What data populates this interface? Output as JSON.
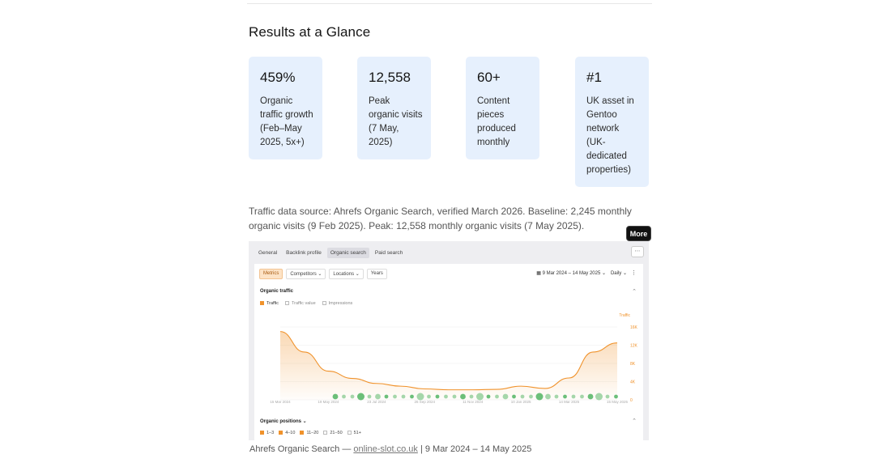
{
  "section_title": "Results at a Glance",
  "stats": [
    {
      "value": "459%",
      "desc": "Organic traffic growth (Feb–May 2025, 5x+)"
    },
    {
      "value": "12,558",
      "desc": "Peak organic visits (7 May, 2025)"
    },
    {
      "value": "60+",
      "desc": "Content pieces produced monthly"
    },
    {
      "value": "#1",
      "desc": "UK asset in Gentoo network (UK-dedicated properties)"
    }
  ],
  "data_note": "Traffic data source: Ahrefs Organic Search, verified March 2026. Baseline: 2,245 monthly organic visits (9 Feb 2025). Peak: 12,558 monthly organic visits (7 May 2025).",
  "tooltip": "More",
  "screenshot": {
    "tabs": [
      "General",
      "Backlink profile",
      "Organic search",
      "Paid search"
    ],
    "active_tab": "Organic search",
    "more_icon": "⋯",
    "toolbar": {
      "metrics": "Metrics",
      "competitors": "Competitors ⌄",
      "locations": "Locations ⌄",
      "years": "Years",
      "date_range": "9 Mar 2024 – 14 May 2025 ⌄",
      "daily": "Daily ⌄",
      "kebab": "⋮"
    },
    "organic_traffic_title": "Organic traffic",
    "legend": {
      "traffic": "Traffic",
      "traffic_value": "Traffic value",
      "impressions": "Impressions"
    },
    "traffic_axis_label": "Traffic",
    "y_ticks": [
      "16K",
      "12K",
      "8K",
      "4K",
      "0"
    ],
    "x_ticks": [
      "15 Mar 2024",
      "19 May 2024",
      "23 Jul 2024",
      "26 Sep 2024",
      "11 Nov 2024",
      "10 Jan 2025",
      "14 Mar 2025",
      "15 May 2025"
    ],
    "organic_positions_title": "Organic positions ⌄",
    "positions_legend": [
      "1–3",
      "4–10",
      "11–20",
      "21–50",
      "51+"
    ],
    "accent": "#f0922b"
  },
  "footer": {
    "prefix": "Ahrefs Organic Search — ",
    "link": "online-slot.co.uk",
    "suffix": " | 9 Mar 2024 – 14 May 2025"
  },
  "chart_data": {
    "type": "area",
    "ylabel": "Traffic",
    "ylim": [
      0,
      16000
    ],
    "x": [
      "Mar 2024",
      "Apr 2024",
      "May 2024",
      "Jun 2024",
      "Jul 2024",
      "Aug 2024",
      "Sep 2024",
      "Oct 2024",
      "Nov 2024",
      "Dec 2024",
      "Jan 2025",
      "Feb 2025",
      "Mar 2025",
      "Apr 2025",
      "May 2025"
    ],
    "series": [
      {
        "values": [
          15000,
          10500,
          6300,
          4700,
          3600,
          3000,
          2400,
          2200,
          2200,
          2300,
          3000,
          2500,
          4800,
          10500,
          12500
        ]
      }
    ]
  }
}
